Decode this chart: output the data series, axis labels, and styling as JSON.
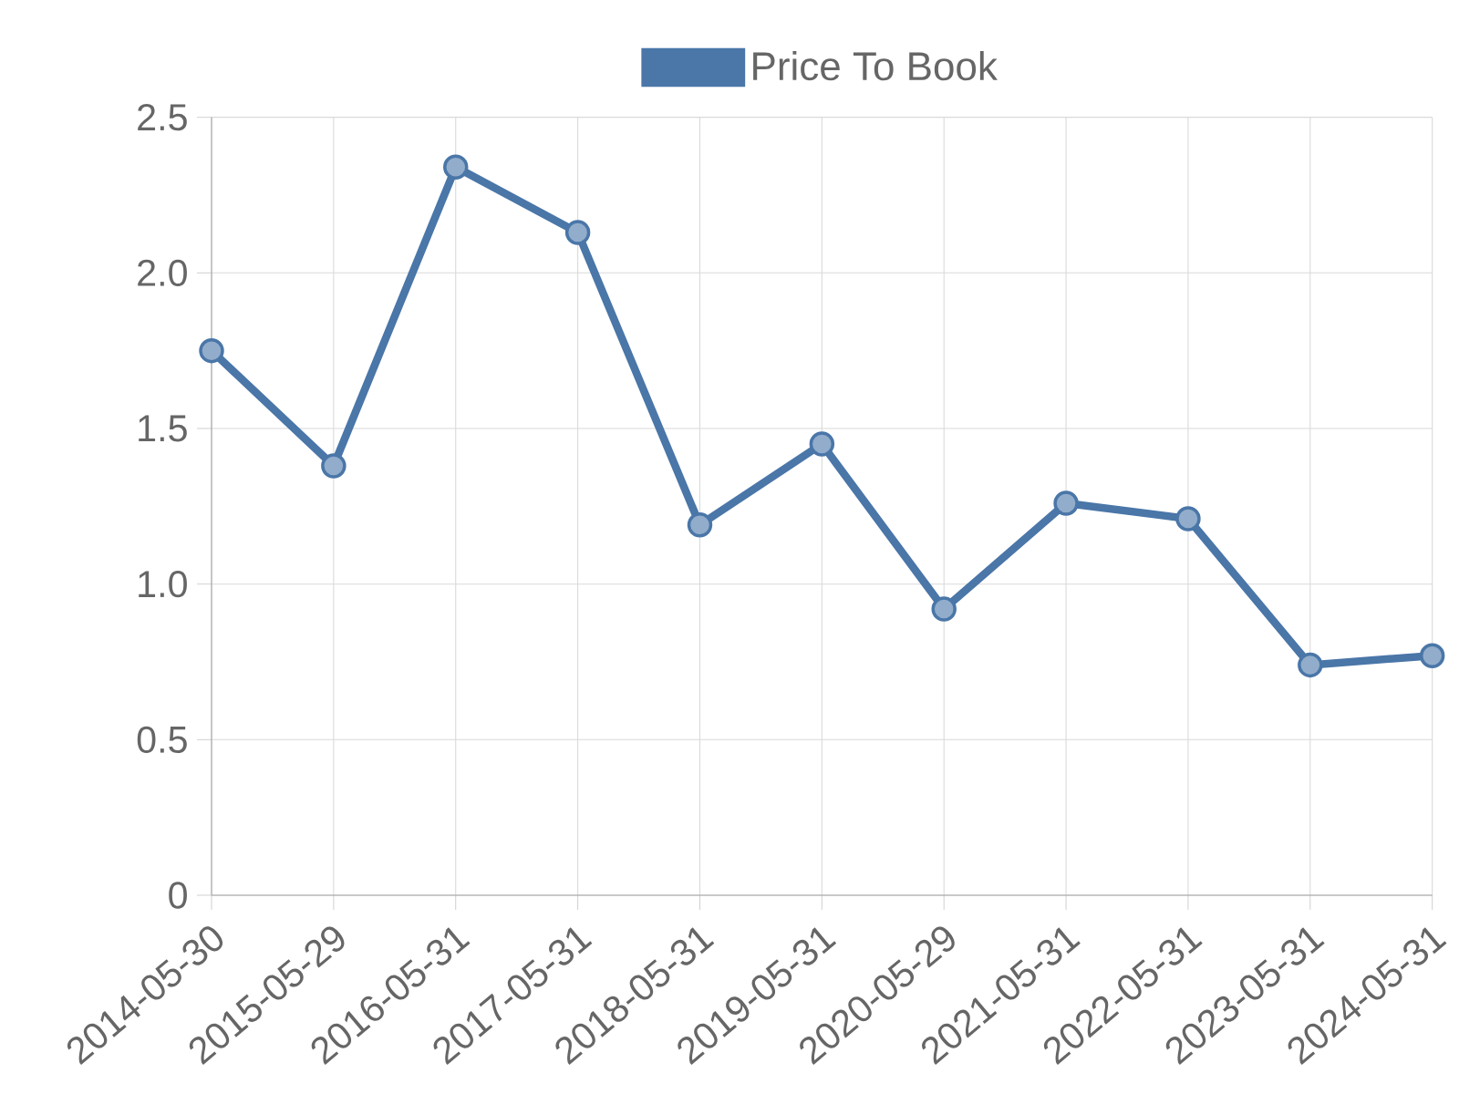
{
  "chart_data": {
    "type": "line",
    "categories": [
      "2014-05-30",
      "2015-05-29",
      "2016-05-31",
      "2017-05-31",
      "2018-05-31",
      "2019-05-31",
      "2020-05-29",
      "2021-05-31",
      "2022-05-31",
      "2023-05-31",
      "2024-05-31"
    ],
    "series": [
      {
        "name": "Price To Book",
        "color": "#4a76a8",
        "values": [
          1.75,
          1.38,
          2.34,
          2.13,
          1.19,
          1.45,
          0.92,
          1.26,
          1.21,
          0.74,
          0.77
        ]
      }
    ],
    "ylim": [
      0,
      2.5
    ],
    "yticks": [
      0,
      0.5,
      {
        "value": 1,
        "label": "1.0"
      },
      1.5,
      {
        "value": 2,
        "label": "2.0"
      },
      2.5
    ],
    "grid": true,
    "legend": "top",
    "marker": "circle",
    "line_style": "solid"
  }
}
